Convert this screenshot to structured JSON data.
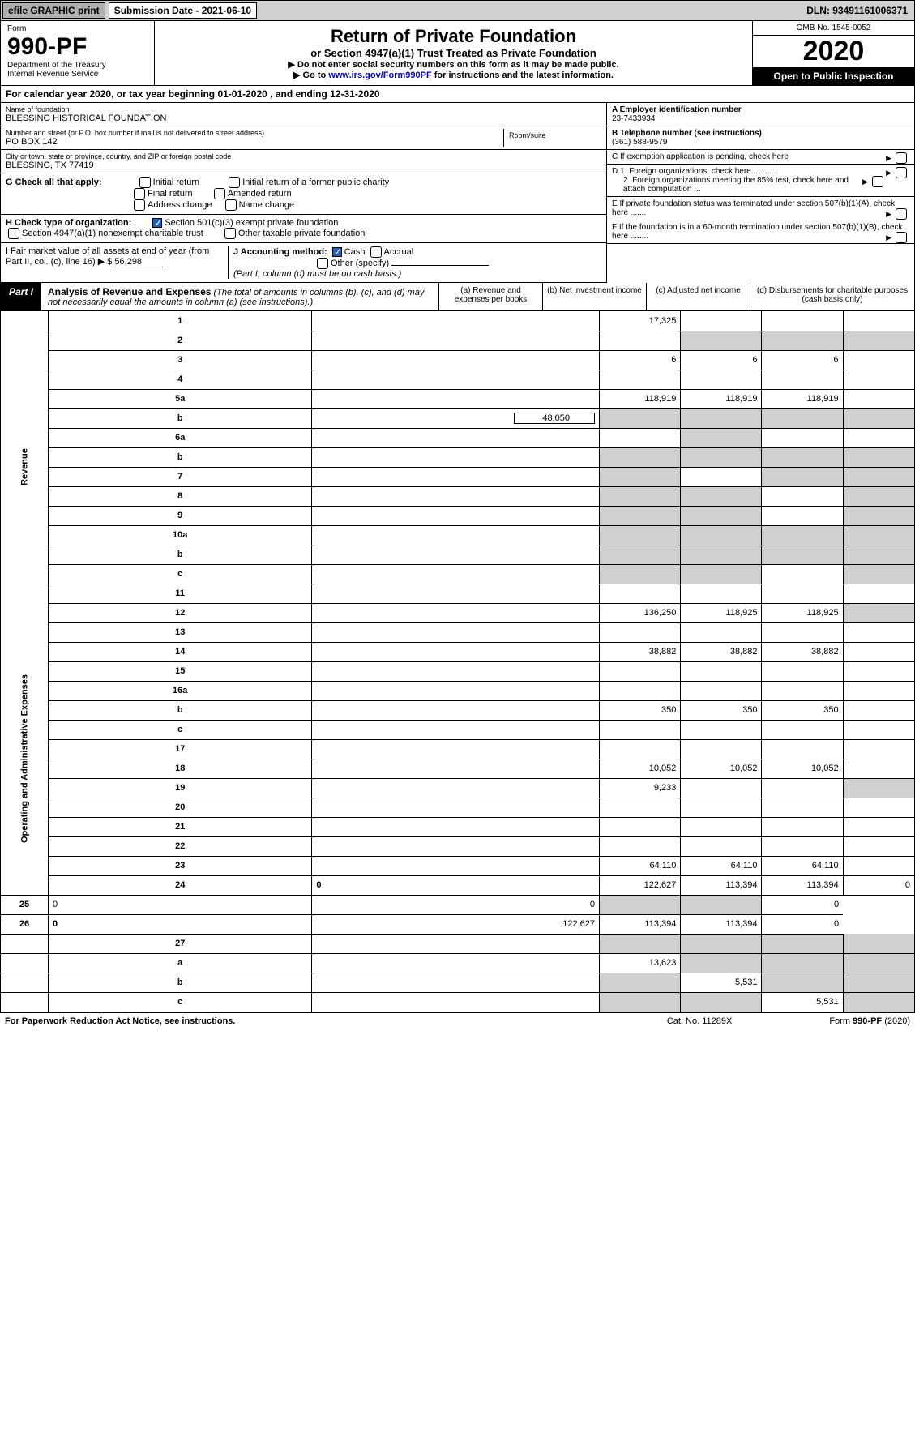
{
  "topbar": {
    "efile": "efile GRAPHIC print",
    "subdate": "Submission Date - 2021-06-10",
    "dln": "DLN: 93491161006371"
  },
  "header": {
    "form": "Form",
    "num": "990-PF",
    "dept": "Department of the Treasury\nInternal Revenue Service",
    "title": "Return of Private Foundation",
    "sub": "or Section 4947(a)(1) Trust Treated as Private Foundation",
    "note1": "▶ Do not enter social security numbers on this form as it may be made public.",
    "note2_pre": "▶ Go to ",
    "note2_link": "www.irs.gov/Form990PF",
    "note2_post": " for instructions and the latest information.",
    "omb": "OMB No. 1545-0052",
    "year": "2020",
    "open": "Open to Public Inspection"
  },
  "cal": "For calendar year 2020, or tax year beginning 01-01-2020                              , and ending 12-31-2020",
  "info": {
    "name_lbl": "Name of foundation",
    "name": "BLESSING HISTORICAL FOUNDATION",
    "addr_lbl": "Number and street (or P.O. box number if mail is not delivered to street address)",
    "addr": "PO BOX 142",
    "room_lbl": "Room/suite",
    "city_lbl": "City or town, state or province, country, and ZIP or foreign postal code",
    "city": "BLESSING, TX  77419",
    "A_lbl": "A Employer identification number",
    "A": "23-7433934",
    "B_lbl": "B Telephone number (see instructions)",
    "B": "(361) 588-9579",
    "C": "C If exemption application is pending, check here",
    "D1": "D 1. Foreign organizations, check here............",
    "D2": "2. Foreign organizations meeting the 85% test, check here and attach computation ...",
    "E": "E  If private foundation status was terminated under section 507(b)(1)(A), check here .......",
    "F": "F  If the foundation is in a 60-month termination under section 507(b)(1)(B), check here ........"
  },
  "G": {
    "lbl": "G Check all that apply:",
    "opts": [
      "Initial return",
      "Initial return of a former public charity",
      "Final return",
      "Amended return",
      "Address change",
      "Name change"
    ]
  },
  "H": {
    "lbl": "H Check type of organization:",
    "opt1": "Section 501(c)(3) exempt private foundation",
    "opt2": "Section 4947(a)(1) nonexempt charitable trust",
    "opt3": "Other taxable private foundation"
  },
  "I": {
    "lbl": "I Fair market value of all assets at end of year (from Part II, col. (c), line 16) ▶ $",
    "val": "56,298"
  },
  "J": {
    "lbl": "J Accounting method:",
    "cash": "Cash",
    "accrual": "Accrual",
    "other": "Other (specify)",
    "note": "(Part I, column (d) must be on cash basis.)"
  },
  "part1": {
    "lbl": "Part I",
    "title": "Analysis of Revenue and Expenses",
    "note": "(The total of amounts in columns (b), (c), and (d) may not necessarily equal the amounts in column (a) (see instructions).)",
    "cols": {
      "a": "(a)    Revenue and expenses per books",
      "b": "(b)   Net investment income",
      "c": "(c)   Adjusted net income",
      "d": "(d)   Disbursements for charitable purposes (cash basis only)"
    }
  },
  "side": {
    "rev": "Revenue",
    "exp": "Operating and Administrative Expenses"
  },
  "rows": [
    {
      "n": "1",
      "d": "",
      "a": "17,325",
      "b": "",
      "c": "",
      "bg": "",
      "cg": "",
      "dg": ""
    },
    {
      "n": "2",
      "d": "",
      "a": "",
      "b": "",
      "c": "",
      "bg": "g",
      "cg": "g",
      "dg": "g"
    },
    {
      "n": "3",
      "d": "",
      "a": "6",
      "b": "6",
      "c": "6"
    },
    {
      "n": "4",
      "d": "",
      "a": "",
      "b": "",
      "c": ""
    },
    {
      "n": "5a",
      "d": "",
      "a": "118,919",
      "b": "118,919",
      "c": "118,919"
    },
    {
      "n": "b",
      "d": "",
      "sub": "48,050",
      "a": "",
      "b": "",
      "c": "",
      "ag": "g",
      "bg": "g",
      "cg": "g",
      "dg": "g"
    },
    {
      "n": "6a",
      "d": "",
      "a": "",
      "b": "",
      "c": "",
      "bg": "g",
      "cg": "",
      "dg": ""
    },
    {
      "n": "b",
      "d": "",
      "a": "",
      "b": "",
      "c": "",
      "ag": "g",
      "bg": "g",
      "cg": "g",
      "dg": "g"
    },
    {
      "n": "7",
      "d": "",
      "a": "",
      "b": "",
      "c": "",
      "ag": "g",
      "cg": "g",
      "dg": "g"
    },
    {
      "n": "8",
      "d": "",
      "a": "",
      "b": "",
      "c": "",
      "ag": "g",
      "bg": "g",
      "dg": "g"
    },
    {
      "n": "9",
      "d": "",
      "a": "",
      "b": "",
      "c": "",
      "ag": "g",
      "bg": "g",
      "dg": "g"
    },
    {
      "n": "10a",
      "d": "",
      "a": "",
      "b": "",
      "c": "",
      "ag": "g",
      "bg": "g",
      "cg": "g",
      "dg": "g"
    },
    {
      "n": "b",
      "d": "",
      "a": "",
      "b": "",
      "c": "",
      "ag": "g",
      "bg": "g",
      "cg": "g",
      "dg": "g"
    },
    {
      "n": "c",
      "d": "",
      "a": "",
      "b": "",
      "c": "",
      "ag": "g",
      "bg": "g",
      "dg": "g"
    },
    {
      "n": "11",
      "d": "",
      "a": "",
      "b": "",
      "c": ""
    },
    {
      "n": "12",
      "d": "",
      "a": "136,250",
      "b": "118,925",
      "c": "118,925",
      "bold": true,
      "dg": "g"
    },
    {
      "n": "13",
      "d": "",
      "a": "",
      "b": "",
      "c": ""
    },
    {
      "n": "14",
      "d": "",
      "a": "38,882",
      "b": "38,882",
      "c": "38,882"
    },
    {
      "n": "15",
      "d": "",
      "a": "",
      "b": "",
      "c": ""
    },
    {
      "n": "16a",
      "d": "",
      "a": "",
      "b": "",
      "c": ""
    },
    {
      "n": "b",
      "d": "",
      "a": "350",
      "b": "350",
      "c": "350"
    },
    {
      "n": "c",
      "d": "",
      "a": "",
      "b": "",
      "c": ""
    },
    {
      "n": "17",
      "d": "",
      "a": "",
      "b": "",
      "c": ""
    },
    {
      "n": "18",
      "d": "",
      "a": "10,052",
      "b": "10,052",
      "c": "10,052"
    },
    {
      "n": "19",
      "d": "",
      "a": "9,233",
      "b": "",
      "c": "",
      "dg": "g"
    },
    {
      "n": "20",
      "d": "",
      "a": "",
      "b": "",
      "c": ""
    },
    {
      "n": "21",
      "d": "",
      "a": "",
      "b": "",
      "c": ""
    },
    {
      "n": "22",
      "d": "",
      "a": "",
      "b": "",
      "c": ""
    },
    {
      "n": "23",
      "d": "",
      "a": "64,110",
      "b": "64,110",
      "c": "64,110"
    },
    {
      "n": "24",
      "d": "0",
      "a": "122,627",
      "b": "113,394",
      "c": "113,394",
      "bold": true
    },
    {
      "n": "25",
      "d": "0",
      "a": "0",
      "b": "",
      "c": "",
      "bg": "g",
      "cg": "g"
    },
    {
      "n": "26",
      "d": "0",
      "a": "122,627",
      "b": "113,394",
      "c": "113,394",
      "bold": true
    },
    {
      "n": "27",
      "d": "",
      "a": "",
      "b": "",
      "c": "",
      "ag": "g",
      "bg": "g",
      "cg": "g",
      "dg": "g",
      "noside": true
    },
    {
      "n": "a",
      "d": "",
      "a": "13,623",
      "b": "",
      "c": "",
      "bold": true,
      "bg": "g",
      "cg": "g",
      "dg": "g",
      "noside": true
    },
    {
      "n": "b",
      "d": "",
      "a": "",
      "b": "5,531",
      "c": "",
      "bold": true,
      "ag": "g",
      "cg": "g",
      "dg": "g",
      "noside": true
    },
    {
      "n": "c",
      "d": "",
      "a": "",
      "b": "",
      "c": "5,531",
      "bold": true,
      "ag": "g",
      "bg": "g",
      "dg": "g",
      "noside": true
    }
  ],
  "footer": {
    "l": "For Paperwork Reduction Act Notice, see instructions.",
    "c": "Cat. No. 11289X",
    "r": "Form 990-PF (2020)"
  }
}
